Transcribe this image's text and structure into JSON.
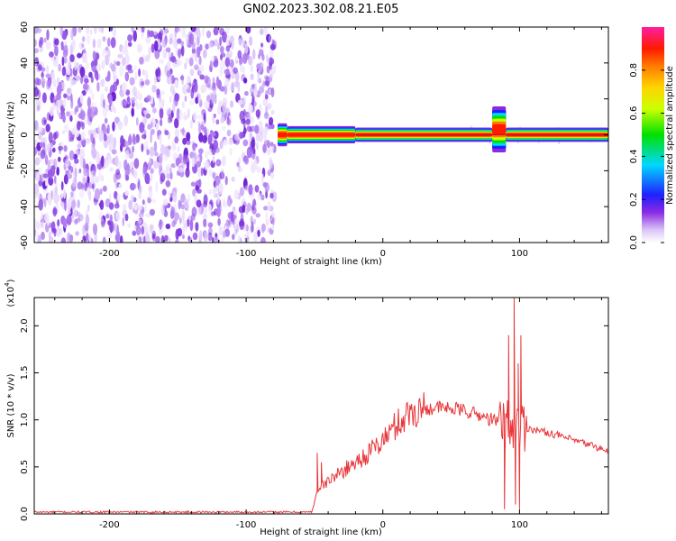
{
  "title": "GN02.2023.302.08.21.E05",
  "chart_data": [
    {
      "type": "heatmap",
      "xlabel": "Height of straight line (km)",
      "ylabel": "Frequency (Hz)",
      "xlim": [
        -255,
        165
      ],
      "ylim": [
        -60,
        60
      ],
      "xticks": [
        -200,
        -100,
        0,
        100
      ],
      "yticks": [
        60,
        40,
        20,
        0,
        -20,
        -40,
        -60
      ],
      "noise_region": {
        "x": [
          -255,
          -77
        ],
        "y": [
          -60,
          60
        ]
      },
      "signal_band": [
        {
          "x": [
            -77,
            -70
          ],
          "y": [
            -4,
            4
          ]
        },
        {
          "x": [
            -70,
            -20
          ],
          "y": [
            -3,
            3
          ]
        },
        {
          "x": [
            -20,
            80
          ],
          "y": [
            -2.5,
            2.5
          ]
        },
        {
          "x": [
            80,
            90
          ],
          "y": [
            -5,
            11
          ]
        },
        {
          "x": [
            90,
            165
          ],
          "y": [
            -2.5,
            2.5
          ]
        }
      ],
      "colorbar": {
        "label": "Normalized spectral amplitude",
        "ticks": [
          0.0,
          0.2,
          0.4,
          0.6,
          0.8
        ],
        "range": [
          0,
          1
        ]
      }
    },
    {
      "type": "line",
      "xlabel": "Height of straight line (km)",
      "ylabel": "SNR (10 * v/v)",
      "yscale_label": "(x10",
      "yscale_exp": "4",
      "yscale_close": ")",
      "xlim": [
        -255,
        165
      ],
      "ylim": [
        0,
        2.3
      ],
      "xticks": [
        -200,
        -100,
        0,
        100
      ],
      "yticks": [
        0.0,
        0.5,
        1.0,
        1.5,
        2.0
      ],
      "color": "#e8363a",
      "profile": [
        [
          -255,
          0.02
        ],
        [
          -52,
          0.02
        ],
        [
          -48,
          0.25
        ],
        [
          -40,
          0.35
        ],
        [
          -30,
          0.45
        ],
        [
          -20,
          0.55
        ],
        [
          -10,
          0.65
        ],
        [
          0,
          0.78
        ],
        [
          10,
          0.95
        ],
        [
          20,
          1.08
        ],
        [
          30,
          1.12
        ],
        [
          40,
          1.13
        ],
        [
          50,
          1.12
        ],
        [
          60,
          1.1
        ],
        [
          70,
          1.05
        ],
        [
          80,
          1.0
        ],
        [
          90,
          0.95
        ],
        [
          100,
          0.93
        ],
        [
          110,
          0.9
        ],
        [
          125,
          0.85
        ],
        [
          140,
          0.78
        ],
        [
          155,
          0.72
        ],
        [
          165,
          0.66
        ]
      ],
      "spikes": [
        [
          -48,
          0.65
        ],
        [
          -45,
          0.55
        ],
        [
          89,
          0.05
        ],
        [
          92,
          1.9
        ],
        [
          96,
          2.3
        ],
        [
          97,
          0.1
        ],
        [
          99,
          1.6
        ],
        [
          100,
          0.05
        ],
        [
          101,
          1.9
        ]
      ]
    }
  ]
}
